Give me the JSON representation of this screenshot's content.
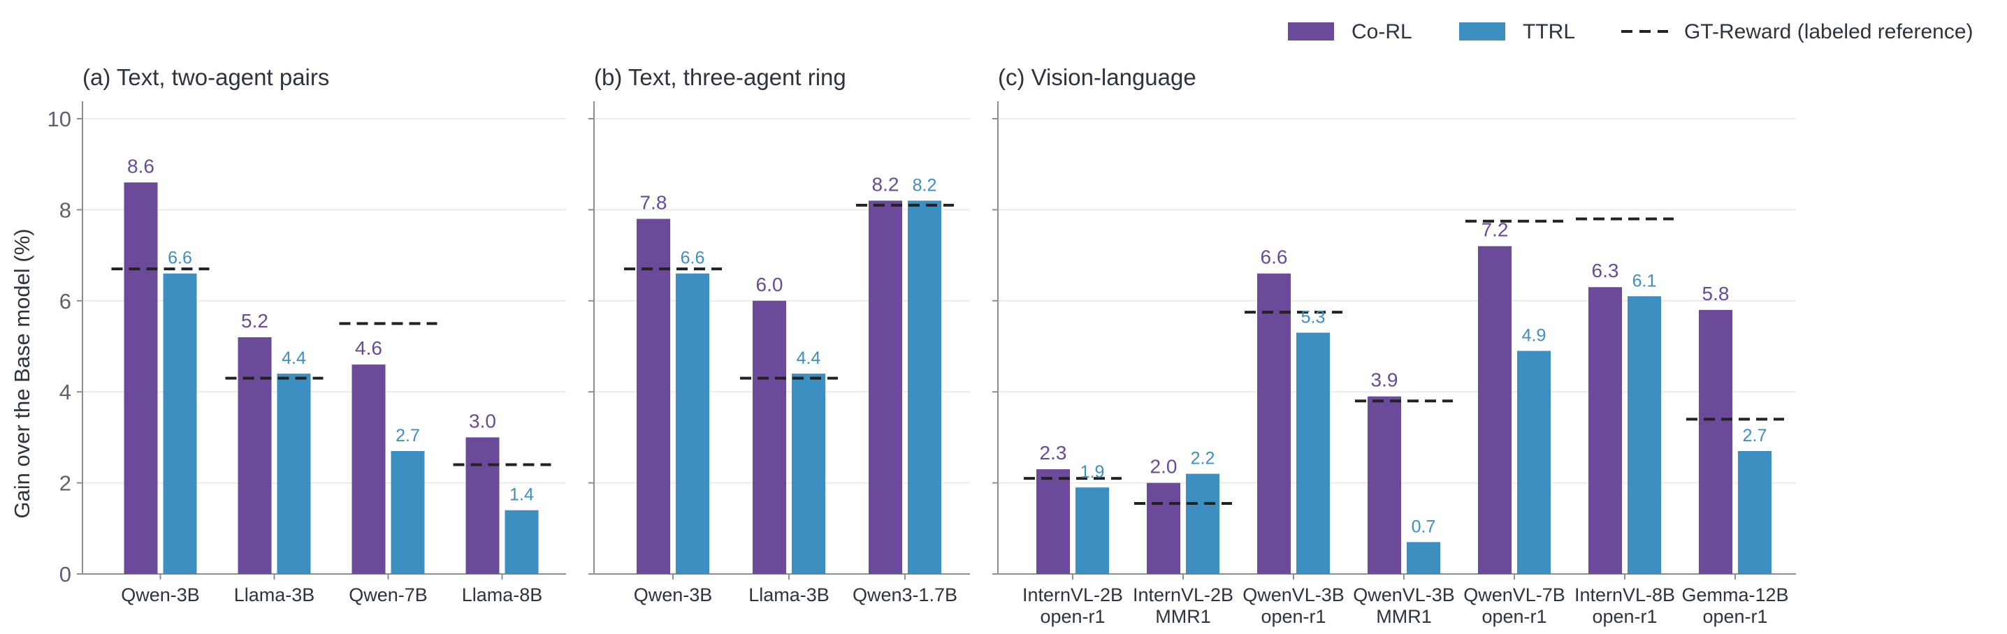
{
  "colors": {
    "co_rl": "#6a4a99",
    "ttrl": "#3c8fc0",
    "reference": "#222222",
    "axis": "#8a8f96",
    "grid": "#e4e6ea",
    "text": "#2c3440",
    "tick_text": "#5a6270"
  },
  "legend": {
    "co_rl": "Co-RL",
    "ttrl": "TTRL",
    "reference": "GT-Reward (labeled reference)"
  },
  "chart_data": [
    {
      "type": "bar",
      "title": "(a) Text, two-agent pairs",
      "ylabel": "Gain over the Base model (%)",
      "ylim": [
        0,
        10
      ],
      "yticks": [
        0,
        2,
        4,
        6,
        8,
        10
      ],
      "grid": true,
      "legend_position": "top-right",
      "categories": [
        [
          "Qwen-3B"
        ],
        [
          "Llama-3B"
        ],
        [
          "Qwen-7B"
        ],
        [
          "Llama-8B"
        ]
      ],
      "series": [
        {
          "name": "Co-RL",
          "values": [
            8.6,
            5.2,
            4.6,
            3.0
          ]
        },
        {
          "name": "TTRL",
          "values": [
            6.6,
            4.4,
            2.7,
            1.4
          ]
        }
      ],
      "reference": {
        "name": "GT-Reward (labeled reference)",
        "values": [
          6.7,
          4.3,
          5.5,
          2.4
        ]
      },
      "value_labels": {
        "co_rl": [
          "8.6",
          "5.2",
          "4.6",
          "3.0"
        ],
        "ttrl": [
          "6.6",
          "4.4",
          "2.7",
          "1.4"
        ]
      }
    },
    {
      "type": "bar",
      "title": "(b) Text, three-agent ring",
      "ylim": [
        0,
        10
      ],
      "yticks": [
        0,
        2,
        4,
        6,
        8,
        10
      ],
      "grid": true,
      "categories": [
        [
          "Qwen-3B"
        ],
        [
          "Llama-3B"
        ],
        [
          "Qwen3-1.7B"
        ]
      ],
      "series": [
        {
          "name": "Co-RL",
          "values": [
            7.8,
            6.0,
            8.2
          ]
        },
        {
          "name": "TTRL",
          "values": [
            6.6,
            4.4,
            8.2
          ]
        }
      ],
      "reference": {
        "name": "GT-Reward (labeled reference)",
        "values": [
          6.7,
          4.3,
          8.1
        ]
      },
      "value_labels": {
        "co_rl": [
          "7.8",
          "6.0",
          "8.2"
        ],
        "ttrl": [
          "6.6",
          "4.4",
          "8.2"
        ]
      }
    },
    {
      "type": "bar",
      "title": "(c) Vision-language",
      "ylim": [
        0,
        10
      ],
      "yticks": [
        0,
        2,
        4,
        6,
        8,
        10
      ],
      "grid": true,
      "categories": [
        [
          "InternVL-2B",
          "open-r1"
        ],
        [
          "InternVL-2B",
          "MMR1"
        ],
        [
          "QwenVL-3B",
          "open-r1"
        ],
        [
          "QwenVL-3B",
          "MMR1"
        ],
        [
          "QwenVL-7B",
          "open-r1"
        ],
        [
          "InternVL-8B",
          "open-r1"
        ],
        [
          "Gemma-12B",
          "open-r1"
        ]
      ],
      "series": [
        {
          "name": "Co-RL",
          "values": [
            2.3,
            2.0,
            6.6,
            3.9,
            7.2,
            6.3,
            5.8
          ]
        },
        {
          "name": "TTRL",
          "values": [
            1.9,
            2.2,
            5.3,
            0.7,
            4.9,
            6.1,
            2.7
          ]
        }
      ],
      "reference": {
        "name": "GT-Reward (labeled reference)",
        "values": [
          2.1,
          1.55,
          5.75,
          3.8,
          7.75,
          7.8,
          3.4
        ]
      },
      "value_labels": {
        "co_rl": [
          "2.3",
          "2.0",
          "6.6",
          "3.9",
          "7.2",
          "6.3",
          "5.8"
        ],
        "ttrl": [
          "1.9",
          "2.2",
          "5.3",
          "0.7",
          "4.9",
          "6.1",
          "2.7"
        ]
      }
    }
  ]
}
